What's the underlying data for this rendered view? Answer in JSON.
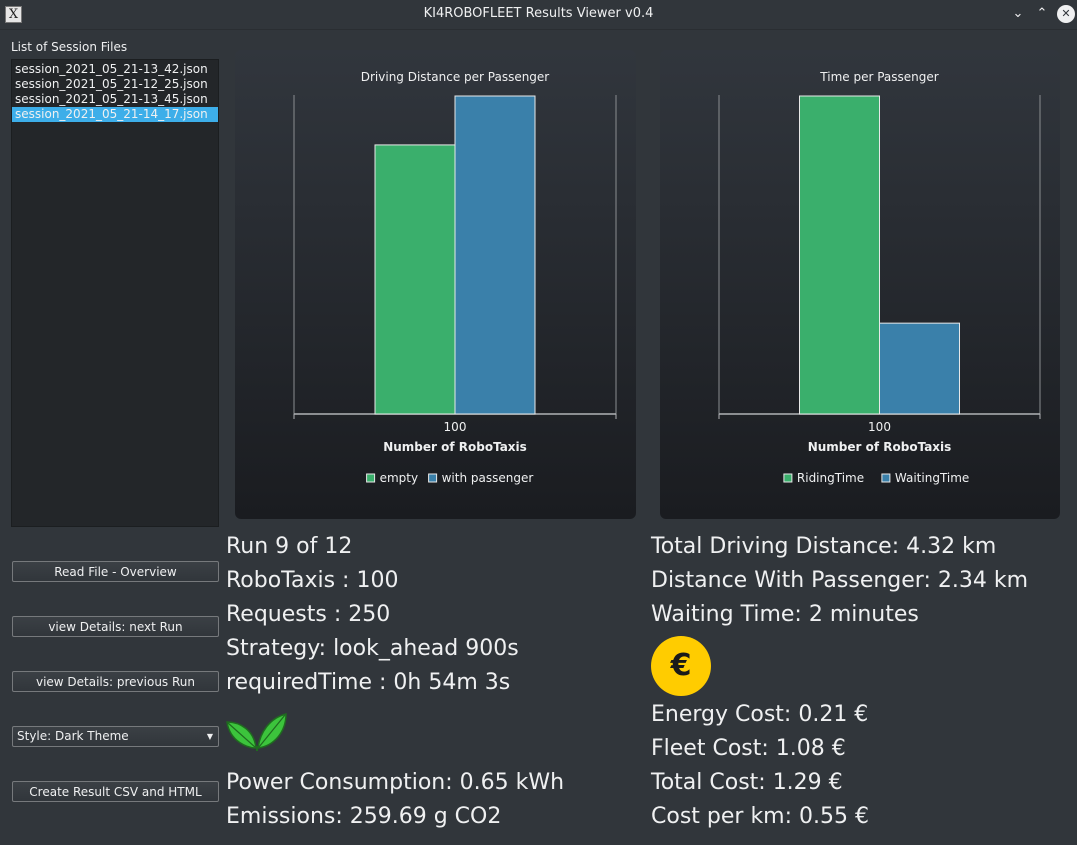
{
  "window": {
    "title": "KI4ROBOFLEET Results Viewer v0.4"
  },
  "sidebar": {
    "files_label": "List of Session Files",
    "files": [
      {
        "name": "session_2021_05_21-13_42.json",
        "selected": false
      },
      {
        "name": "session_2021_05_21-12_25.json",
        "selected": false
      },
      {
        "name": "session_2021_05_21-13_45.json",
        "selected": false
      },
      {
        "name": "session_2021_05_21-14_17.json",
        "selected": true
      }
    ],
    "buttons": {
      "read_file": "Read File - Overview",
      "next_run": "view Details: next Run",
      "prev_run": "view Details: previous Run",
      "style_select": "Style: Dark Theme",
      "create_result": "Create Result CSV and HTML"
    }
  },
  "chart_data": [
    {
      "type": "bar",
      "title": "Driving Distance per Passenger",
      "xlabel": "Number of RoboTaxis",
      "ylabel": "",
      "categories": [
        "100"
      ],
      "series": [
        {
          "name": "empty",
          "color": "#3aaf6c",
          "values": [
            1.98
          ]
        },
        {
          "name": "with passenger",
          "color": "#3a80aa",
          "values": [
            2.34
          ]
        }
      ],
      "ylim": [
        0,
        2.34
      ],
      "legend": "bottom"
    },
    {
      "type": "bar",
      "title": "Time per Passenger",
      "xlabel": "Number of RoboTaxis",
      "ylabel": "",
      "categories": [
        "100"
      ],
      "series": [
        {
          "name": "RidingTime",
          "color": "#3aaf6c",
          "values": [
            7
          ]
        },
        {
          "name": "WaitingTime",
          "color": "#3a80aa",
          "values": [
            2
          ]
        }
      ],
      "ylim": [
        0,
        7
      ],
      "legend": "bottom"
    }
  ],
  "stats": {
    "run": "Run 9 of 12",
    "robotaxis": "RoboTaxis : 100",
    "requests": "Requests : 250",
    "strategy": "Strategy: look_ahead  900s",
    "required_time": "requiredTime : 0h 54m 3s",
    "power": "Power Consumption: 0.65 kWh",
    "emissions": "Emissions: 259.69 g CO2",
    "total_distance": "Total Driving Distance: 4.32 km",
    "distance_passenger": "Distance With Passenger: 2.34 km",
    "waiting_time": "Waiting Time: 2 minutes",
    "euro_symbol": "€",
    "energy_cost": "Energy Cost: 0.21 €",
    "fleet_cost": "Fleet Cost: 1.08 €",
    "total_cost": "Total Cost: 1.29 €",
    "cost_per_km": "Cost per km: 0.55 €"
  }
}
